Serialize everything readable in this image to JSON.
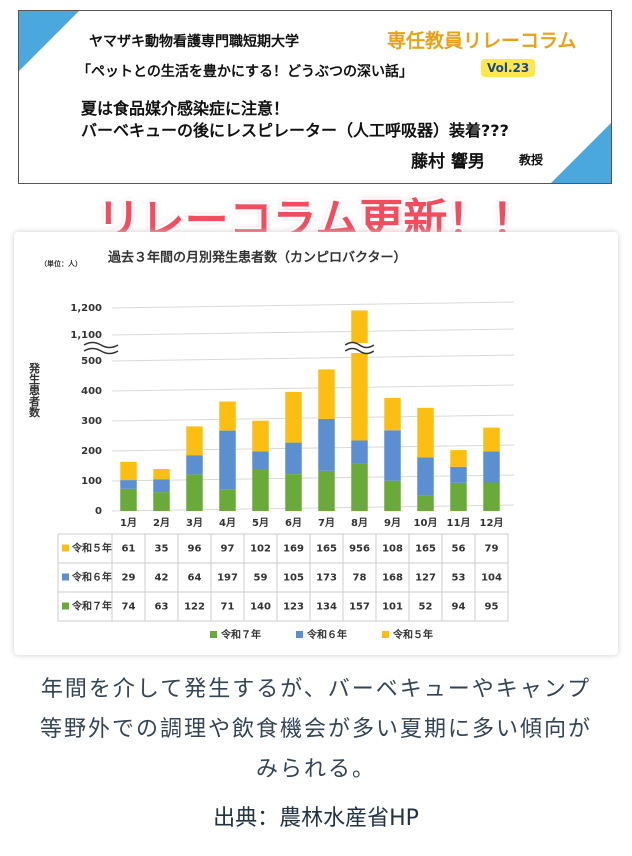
{
  "header": {
    "school": "ヤマザキ動物看護専門職短期大学",
    "series_title": "専任教員リレーコラム",
    "column_title": "「ペットとの生活を豊かにする！どうぶつの深い話」",
    "volume": "Vol.23",
    "headline_1": "夏は食品媒介感染症に注意！",
    "headline_2": "バーベキューの後にレスピレーター（人工呼吸器）装着???",
    "author": "藤村 響男",
    "author_title": "教授"
  },
  "banner": "リレーコラム更新！！",
  "chart_data": {
    "type": "bar",
    "stacked": true,
    "title": "過去３年間の月別発生患者数（カンピロバクター）",
    "unit": "（単位：人）",
    "y_label": "発生患者数",
    "categories": [
      "1月",
      "2月",
      "3月",
      "4月",
      "5月",
      "6月",
      "7月",
      "8月",
      "9月",
      "10月",
      "11月",
      "12月"
    ],
    "series": [
      {
        "name": "令和５年",
        "color": "#fbbf14",
        "values": [
          61,
          35,
          96,
          97,
          102,
          169,
          165,
          956,
          108,
          165,
          56,
          79
        ]
      },
      {
        "name": "令和６年",
        "color": "#5b8fd0",
        "values": [
          29,
          42,
          64,
          197,
          59,
          105,
          173,
          78,
          168,
          127,
          53,
          104
        ]
      },
      {
        "name": "令和７年",
        "color": "#6aaa3a",
        "values": [
          74,
          63,
          122,
          71,
          140,
          123,
          134,
          157,
          101,
          52,
          94,
          95
        ]
      }
    ],
    "ylim": [
      0,
      1200
    ],
    "axis_break": [
      500,
      1100
    ],
    "yticks": [
      0,
      100,
      200,
      300,
      400,
      500,
      {
        "value": 1100,
        "label": "1,100"
      },
      {
        "value": 1200,
        "label": "1,200"
      }
    ],
    "grid": true,
    "legend": "bottom"
  },
  "caption": "年間を介して発生するが、バーベキューやキャンプ等野外での調理や飲食機会が多い夏期に多い傾向がみられる。",
  "source": "出典：農林水産省HP"
}
